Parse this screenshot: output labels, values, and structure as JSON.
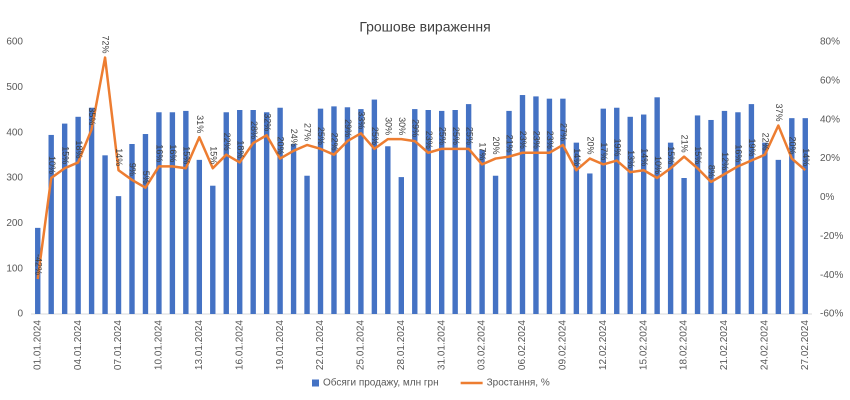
{
  "chart_data": {
    "type": "bar-line",
    "title": "Грошове вираження",
    "categories": [
      "01.01.2024",
      null,
      null,
      "04.01.2024",
      null,
      null,
      "07.01.2024",
      null,
      null,
      "10.01.2024",
      null,
      null,
      "13.01.2024",
      null,
      null,
      "16.01.2024",
      null,
      null,
      "19.01.2024",
      null,
      null,
      "22.01.2024",
      null,
      null,
      "25.01.2024",
      null,
      null,
      "28.01.2024",
      null,
      null,
      "31.01.2024",
      null,
      null,
      "03.02.2024",
      null,
      null,
      "06.02.2024",
      null,
      null,
      "09.02.2024",
      null,
      null,
      "12.02.2024",
      null,
      null,
      "15.02.2024",
      null,
      null,
      "18.02.2024",
      null,
      null,
      "21.02.2024",
      null,
      null,
      "24.02.2024",
      null,
      null,
      "27.02.2024"
    ],
    "series": [
      {
        "name": "Обсяги продажу, млн грн",
        "type": "bar",
        "color": "#4472c4",
        "values": [
          190,
          395,
          420,
          435,
          455,
          350,
          260,
          375,
          397,
          445,
          445,
          448,
          340,
          283,
          445,
          450,
          450,
          445,
          455,
          375,
          305,
          453,
          458,
          456,
          452,
          473,
          370,
          302,
          452,
          450,
          448,
          450,
          463,
          362,
          305,
          448,
          483,
          480,
          475,
          475,
          378,
          310,
          453,
          455,
          435,
          440,
          478,
          378,
          300,
          438,
          428,
          448,
          445,
          463,
          378,
          340,
          432,
          432
        ]
      },
      {
        "name": "Зростання, %",
        "type": "line",
        "axis": "y2",
        "color": "#ed7d31",
        "values": [
          -42,
          10,
          15,
          18,
          35,
          72,
          14,
          9,
          5,
          16,
          16,
          15,
          31,
          15,
          22,
          18,
          28,
          32,
          20,
          24,
          27,
          25,
          22,
          29,
          33,
          25,
          30,
          30,
          29,
          23,
          25,
          25,
          25,
          17,
          20,
          21,
          23,
          23,
          23,
          27,
          14,
          20,
          17,
          19,
          13,
          14,
          10,
          15,
          21,
          15,
          8,
          12,
          16,
          19,
          22,
          37,
          20,
          14
        ],
        "value_labels": [
          "-42%",
          "10%",
          "15%",
          "18%",
          "35%",
          "72%",
          "14%",
          "9%",
          "5%",
          "16%",
          "16%",
          "15%",
          "31%",
          "15%",
          "22%",
          "18%",
          "28%",
          "32%",
          "20%",
          "24%",
          "27%",
          "25%",
          "22%",
          "29%",
          "33%",
          "25%",
          "30%",
          "30%",
          "29%",
          "23%",
          "25%",
          "25%",
          "25%",
          "17%",
          "20%",
          "21%",
          "23%",
          "23%",
          "23%",
          "27%",
          "14%",
          "20%",
          "17%",
          "19%",
          "13%",
          "14%",
          "10%",
          "15%",
          "21%",
          "15%",
          "8%",
          "12%",
          "16%",
          "19%",
          "22%",
          "37%",
          "20%",
          "14%"
        ]
      }
    ],
    "ylim": [
      0,
      600
    ],
    "yticks": [
      0,
      100,
      200,
      300,
      400,
      500,
      600
    ],
    "y2lim": [
      -60,
      80
    ],
    "y2ticks": [
      {
        "value": -60,
        "label": "-60%"
      },
      {
        "value": -40,
        "label": "-40%"
      },
      {
        "value": -20,
        "label": "-20%"
      },
      {
        "value": 0,
        "label": "0%"
      },
      {
        "value": 20,
        "label": "20%"
      },
      {
        "value": 40,
        "label": "40%"
      },
      {
        "value": 60,
        "label": "60%"
      },
      {
        "value": 80,
        "label": "80%"
      }
    ],
    "grid": false,
    "legend": "bottom"
  }
}
